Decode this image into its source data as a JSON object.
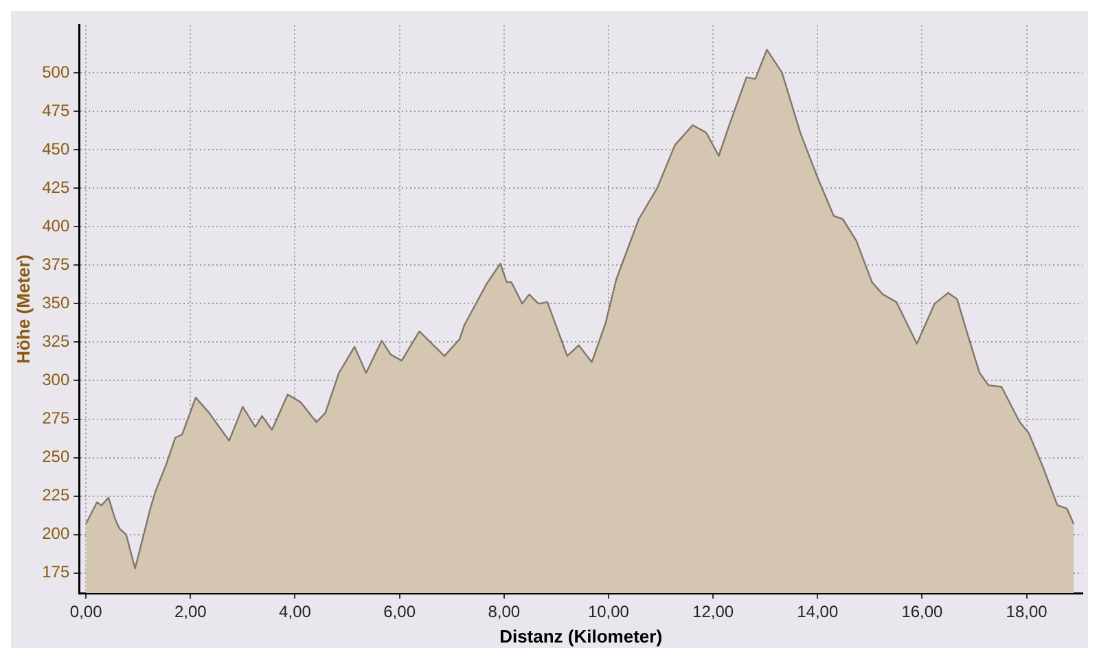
{
  "chart_data": {
    "type": "area",
    "xlabel": "Distanz (Kilometer)",
    "ylabel": "Höhe (Meter)",
    "x": [
      0,
      0.21,
      0.3,
      0.43,
      0.56,
      0.64,
      0.77,
      0.94,
      1.24,
      1.33,
      1.54,
      1.71,
      1.84,
      2.1,
      2.36,
      2.74,
      3.0,
      3.24,
      3.37,
      3.56,
      3.86,
      4.11,
      4.41,
      4.58,
      4.84,
      5.14,
      5.36,
      5.66,
      5.83,
      6.04,
      6.38,
      6.86,
      7.15,
      7.24,
      7.67,
      7.93,
      8.05,
      8.14,
      8.35,
      8.48,
      8.66,
      8.83,
      9.21,
      9.43,
      9.68,
      9.94,
      10.15,
      10.58,
      10.93,
      11.27,
      11.61,
      11.87,
      12.11,
      12.3,
      12.64,
      12.81,
      13.03,
      13.32,
      13.67,
      14.01,
      14.31,
      14.48,
      14.74,
      15.04,
      15.25,
      15.51,
      15.9,
      16.24,
      16.5,
      16.67,
      16.88,
      17.1,
      17.27,
      17.52,
      17.87,
      18.04,
      18.3,
      18.59,
      18.77,
      18.9
    ],
    "series": [
      {
        "color": "#d5c6b2",
        "values": [
          207,
          221,
          219,
          224,
          210,
          204,
          200,
          178,
          218,
          228,
          246,
          263,
          265,
          289,
          279,
          261,
          283,
          270,
          277,
          268,
          291,
          286,
          273,
          279,
          305,
          322,
          305,
          326,
          317,
          313,
          332,
          316,
          327,
          336,
          363,
          376,
          364,
          364,
          350,
          356,
          350,
          351,
          316,
          323,
          312,
          337,
          366,
          405,
          425,
          453,
          466,
          461,
          446,
          465,
          497,
          496,
          515,
          500,
          461,
          431,
          407,
          405,
          391,
          364,
          356,
          351,
          324,
          350,
          357,
          353,
          329,
          305,
          297,
          296,
          273,
          266,
          245,
          219,
          217,
          207
        ]
      }
    ],
    "xlim": [
      -0.13,
      19.07
    ],
    "ylim": [
      162,
      531
    ],
    "xticks": [
      {
        "value": 0,
        "label": "0,00"
      },
      {
        "value": 2,
        "label": "2,00"
      },
      {
        "value": 4,
        "label": "4,00"
      },
      {
        "value": 6,
        "label": "6,00"
      },
      {
        "value": 8,
        "label": "8,00"
      },
      {
        "value": 10,
        "label": "10,00"
      },
      {
        "value": 12,
        "label": "12,00"
      },
      {
        "value": 14,
        "label": "14,00"
      },
      {
        "value": 16,
        "label": "16,00"
      },
      {
        "value": 18,
        "label": "18,00"
      }
    ],
    "yticks": [
      175,
      200,
      225,
      250,
      275,
      300,
      325,
      350,
      375,
      400,
      425,
      450,
      475,
      500
    ],
    "grid": true,
    "marker": "none"
  }
}
